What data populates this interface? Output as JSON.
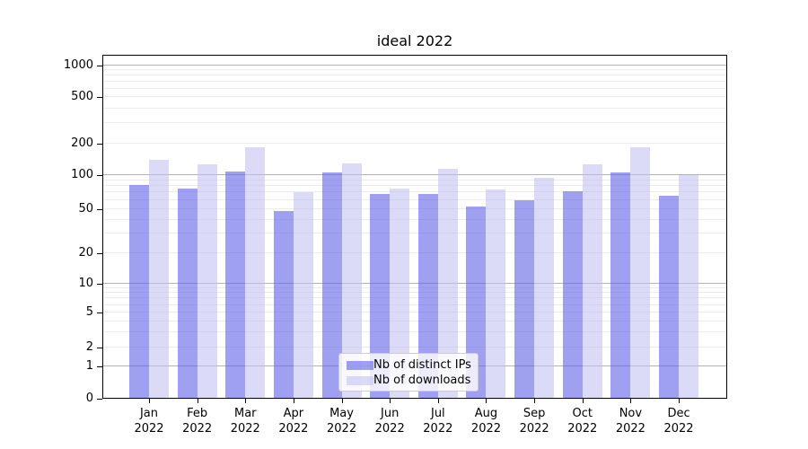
{
  "chart_data": {
    "type": "bar",
    "title": "ideal 2022",
    "categories": [
      "Jan",
      "Feb",
      "Mar",
      "Apr",
      "May",
      "Jun",
      "Jul",
      "Aug",
      "Sep",
      "Oct",
      "Nov",
      "Dec"
    ],
    "category_year": "2022",
    "series": [
      {
        "name": "Nb of distinct IPs",
        "color_hex": "#a8a8f4",
        "fill": "rgba(97,97,230,0.6)",
        "values": [
          82,
          76,
          109,
          48,
          107,
          68,
          68,
          53,
          60,
          72,
          106,
          66
        ]
      },
      {
        "name": "Nb of downloads",
        "color_hex": "#dcdcf9",
        "fill": "rgba(190,190,242,0.55)",
        "values": [
          141,
          127,
          185,
          71,
          129,
          76,
          116,
          74,
          95,
          126,
          185,
          100
        ]
      }
    ],
    "xlabel": "",
    "ylabel": "",
    "yscale": "symlog",
    "yticks": [
      0,
      1,
      2,
      5,
      10,
      20,
      50,
      100,
      200,
      500,
      1000
    ],
    "ylim": [
      0,
      1250
    ],
    "grid": "both",
    "gridline_major_color": "#b3b3b3",
    "gridline_minor_color": "#ececec",
    "legend": {
      "position": "lower center"
    }
  }
}
